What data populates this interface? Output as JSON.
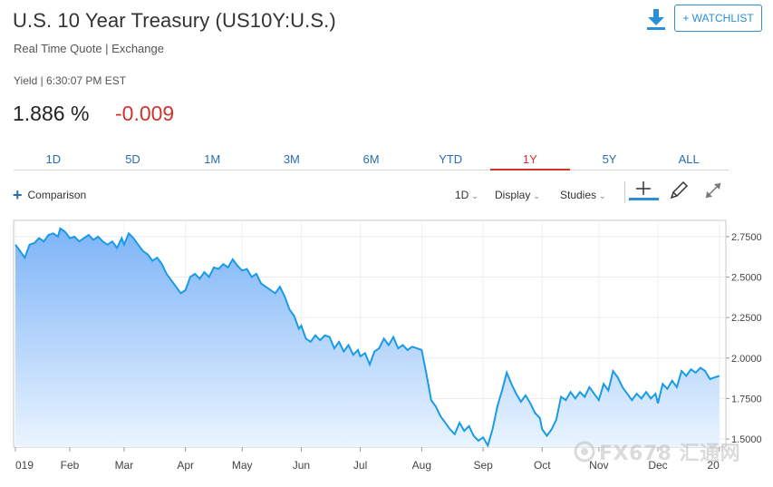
{
  "header": {
    "title": "U.S. 10 Year Treasury (US10Y:U.S.)",
    "subtitle": "Real Time Quote | Exchange",
    "watchlist_label": "+ WATCHLIST",
    "download_icon": "download-icon"
  },
  "quote": {
    "time_label": "Yield | 6:30:07 PM EST",
    "price": "1.886",
    "unit": "%",
    "change": "-0.009",
    "change_color": "#d0342c"
  },
  "tabs": [
    {
      "label": "1D",
      "active": false
    },
    {
      "label": "5D",
      "active": false
    },
    {
      "label": "1M",
      "active": false
    },
    {
      "label": "3M",
      "active": false
    },
    {
      "label": "6M",
      "active": false
    },
    {
      "label": "YTD",
      "active": false
    },
    {
      "label": "1Y",
      "active": true
    },
    {
      "label": "5Y",
      "active": false
    },
    {
      "label": "ALL",
      "active": false
    }
  ],
  "toolbar": {
    "comparison_label": "Comparison",
    "interval_label": "1D",
    "display_label": "Display",
    "studies_label": "Studies",
    "icons": [
      "crosshair-icon",
      "pencil-icon",
      "expand-icon"
    ]
  },
  "watermark": {
    "text": "FX678 汇通网"
  },
  "chart_data": {
    "type": "area",
    "line_color": "#1a9be6",
    "fill_top_color": "#7db4f7",
    "fill_bottom_color": "#eaf4ff",
    "y_ticks": [
      "2.7500",
      "2.5000",
      "2.2500",
      "2.0000",
      "1.7500",
      "1.5000"
    ],
    "y_tick_values": [
      2.75,
      2.5,
      2.25,
      2.0,
      1.75,
      1.5
    ],
    "ylim": [
      1.45,
      2.85
    ],
    "x_tick_labels": [
      "019",
      "Feb",
      "Mar",
      "Apr",
      "May",
      "Jun",
      "Jul",
      "Aug",
      "Sep",
      "Oct",
      "Nov",
      "Dec",
      "20"
    ],
    "x_tick_positions": [
      0,
      23,
      46,
      72,
      96,
      121,
      146,
      172,
      198,
      223,
      247,
      272,
      298
    ],
    "x_range": [
      0,
      300
    ],
    "grid": true,
    "points": [
      [
        0,
        2.7
      ],
      [
        2,
        2.66
      ],
      [
        4,
        2.62
      ],
      [
        6,
        2.7
      ],
      [
        8,
        2.71
      ],
      [
        10,
        2.74
      ],
      [
        12,
        2.72
      ],
      [
        14,
        2.76
      ],
      [
        16,
        2.77
      ],
      [
        18,
        2.75
      ],
      [
        19,
        2.8
      ],
      [
        21,
        2.78
      ],
      [
        23,
        2.74
      ],
      [
        25,
        2.75
      ],
      [
        27,
        2.72
      ],
      [
        29,
        2.74
      ],
      [
        31,
        2.76
      ],
      [
        33,
        2.73
      ],
      [
        35,
        2.75
      ],
      [
        37,
        2.72
      ],
      [
        39,
        2.7
      ],
      [
        41,
        2.72
      ],
      [
        43,
        2.68
      ],
      [
        45,
        2.74
      ],
      [
        46,
        2.7
      ],
      [
        48,
        2.77
      ],
      [
        50,
        2.74
      ],
      [
        52,
        2.7
      ],
      [
        54,
        2.66
      ],
      [
        56,
        2.64
      ],
      [
        58,
        2.6
      ],
      [
        60,
        2.62
      ],
      [
        62,
        2.58
      ],
      [
        64,
        2.52
      ],
      [
        66,
        2.48
      ],
      [
        68,
        2.44
      ],
      [
        70,
        2.4
      ],
      [
        72,
        2.42
      ],
      [
        74,
        2.5
      ],
      [
        76,
        2.52
      ],
      [
        78,
        2.49
      ],
      [
        80,
        2.53
      ],
      [
        82,
        2.5
      ],
      [
        84,
        2.56
      ],
      [
        86,
        2.55
      ],
      [
        88,
        2.58
      ],
      [
        90,
        2.56
      ],
      [
        92,
        2.61
      ],
      [
        94,
        2.57
      ],
      [
        96,
        2.54
      ],
      [
        98,
        2.55
      ],
      [
        100,
        2.5
      ],
      [
        102,
        2.52
      ],
      [
        104,
        2.46
      ],
      [
        106,
        2.44
      ],
      [
        108,
        2.42
      ],
      [
        110,
        2.4
      ],
      [
        112,
        2.44
      ],
      [
        114,
        2.38
      ],
      [
        116,
        2.3
      ],
      [
        118,
        2.26
      ],
      [
        120,
        2.18
      ],
      [
        121,
        2.2
      ],
      [
        123,
        2.12
      ],
      [
        125,
        2.1
      ],
      [
        127,
        2.14
      ],
      [
        129,
        2.11
      ],
      [
        131,
        2.14
      ],
      [
        133,
        2.13
      ],
      [
        135,
        2.06
      ],
      [
        137,
        2.1
      ],
      [
        139,
        2.04
      ],
      [
        141,
        2.08
      ],
      [
        143,
        2.02
      ],
      [
        145,
        2.05
      ],
      [
        146,
        2.01
      ],
      [
        148,
        2.03
      ],
      [
        150,
        1.96
      ],
      [
        152,
        2.04
      ],
      [
        154,
        2.06
      ],
      [
        156,
        2.12
      ],
      [
        158,
        2.08
      ],
      [
        160,
        2.13
      ],
      [
        162,
        2.06
      ],
      [
        164,
        2.08
      ],
      [
        166,
        2.05
      ],
      [
        168,
        2.07
      ],
      [
        170,
        2.06
      ],
      [
        172,
        2.05
      ],
      [
        174,
        1.9
      ],
      [
        176,
        1.74
      ],
      [
        178,
        1.7
      ],
      [
        180,
        1.64
      ],
      [
        182,
        1.6
      ],
      [
        184,
        1.56
      ],
      [
        186,
        1.53
      ],
      [
        188,
        1.6
      ],
      [
        190,
        1.55
      ],
      [
        192,
        1.58
      ],
      [
        194,
        1.52
      ],
      [
        196,
        1.49
      ],
      [
        198,
        1.51
      ],
      [
        200,
        1.46
      ],
      [
        202,
        1.56
      ],
      [
        204,
        1.7
      ],
      [
        206,
        1.8
      ],
      [
        208,
        1.91
      ],
      [
        210,
        1.84
      ],
      [
        212,
        1.78
      ],
      [
        214,
        1.73
      ],
      [
        216,
        1.77
      ],
      [
        218,
        1.72
      ],
      [
        220,
        1.66
      ],
      [
        222,
        1.63
      ],
      [
        223,
        1.56
      ],
      [
        225,
        1.52
      ],
      [
        227,
        1.56
      ],
      [
        229,
        1.62
      ],
      [
        231,
        1.76
      ],
      [
        233,
        1.74
      ],
      [
        235,
        1.79
      ],
      [
        237,
        1.75
      ],
      [
        239,
        1.79
      ],
      [
        241,
        1.76
      ],
      [
        243,
        1.82
      ],
      [
        245,
        1.78
      ],
      [
        247,
        1.74
      ],
      [
        249,
        1.84
      ],
      [
        251,
        1.8
      ],
      [
        253,
        1.92
      ],
      [
        255,
        1.88
      ],
      [
        257,
        1.82
      ],
      [
        259,
        1.78
      ],
      [
        261,
        1.74
      ],
      [
        263,
        1.78
      ],
      [
        265,
        1.75
      ],
      [
        267,
        1.79
      ],
      [
        269,
        1.75
      ],
      [
        271,
        1.78
      ],
      [
        272,
        1.72
      ],
      [
        274,
        1.84
      ],
      [
        276,
        1.81
      ],
      [
        278,
        1.86
      ],
      [
        280,
        1.82
      ],
      [
        282,
        1.92
      ],
      [
        284,
        1.89
      ],
      [
        286,
        1.93
      ],
      [
        288,
        1.91
      ],
      [
        290,
        1.94
      ],
      [
        292,
        1.92
      ],
      [
        294,
        1.87
      ],
      [
        296,
        1.88
      ],
      [
        298,
        1.89
      ]
    ]
  }
}
